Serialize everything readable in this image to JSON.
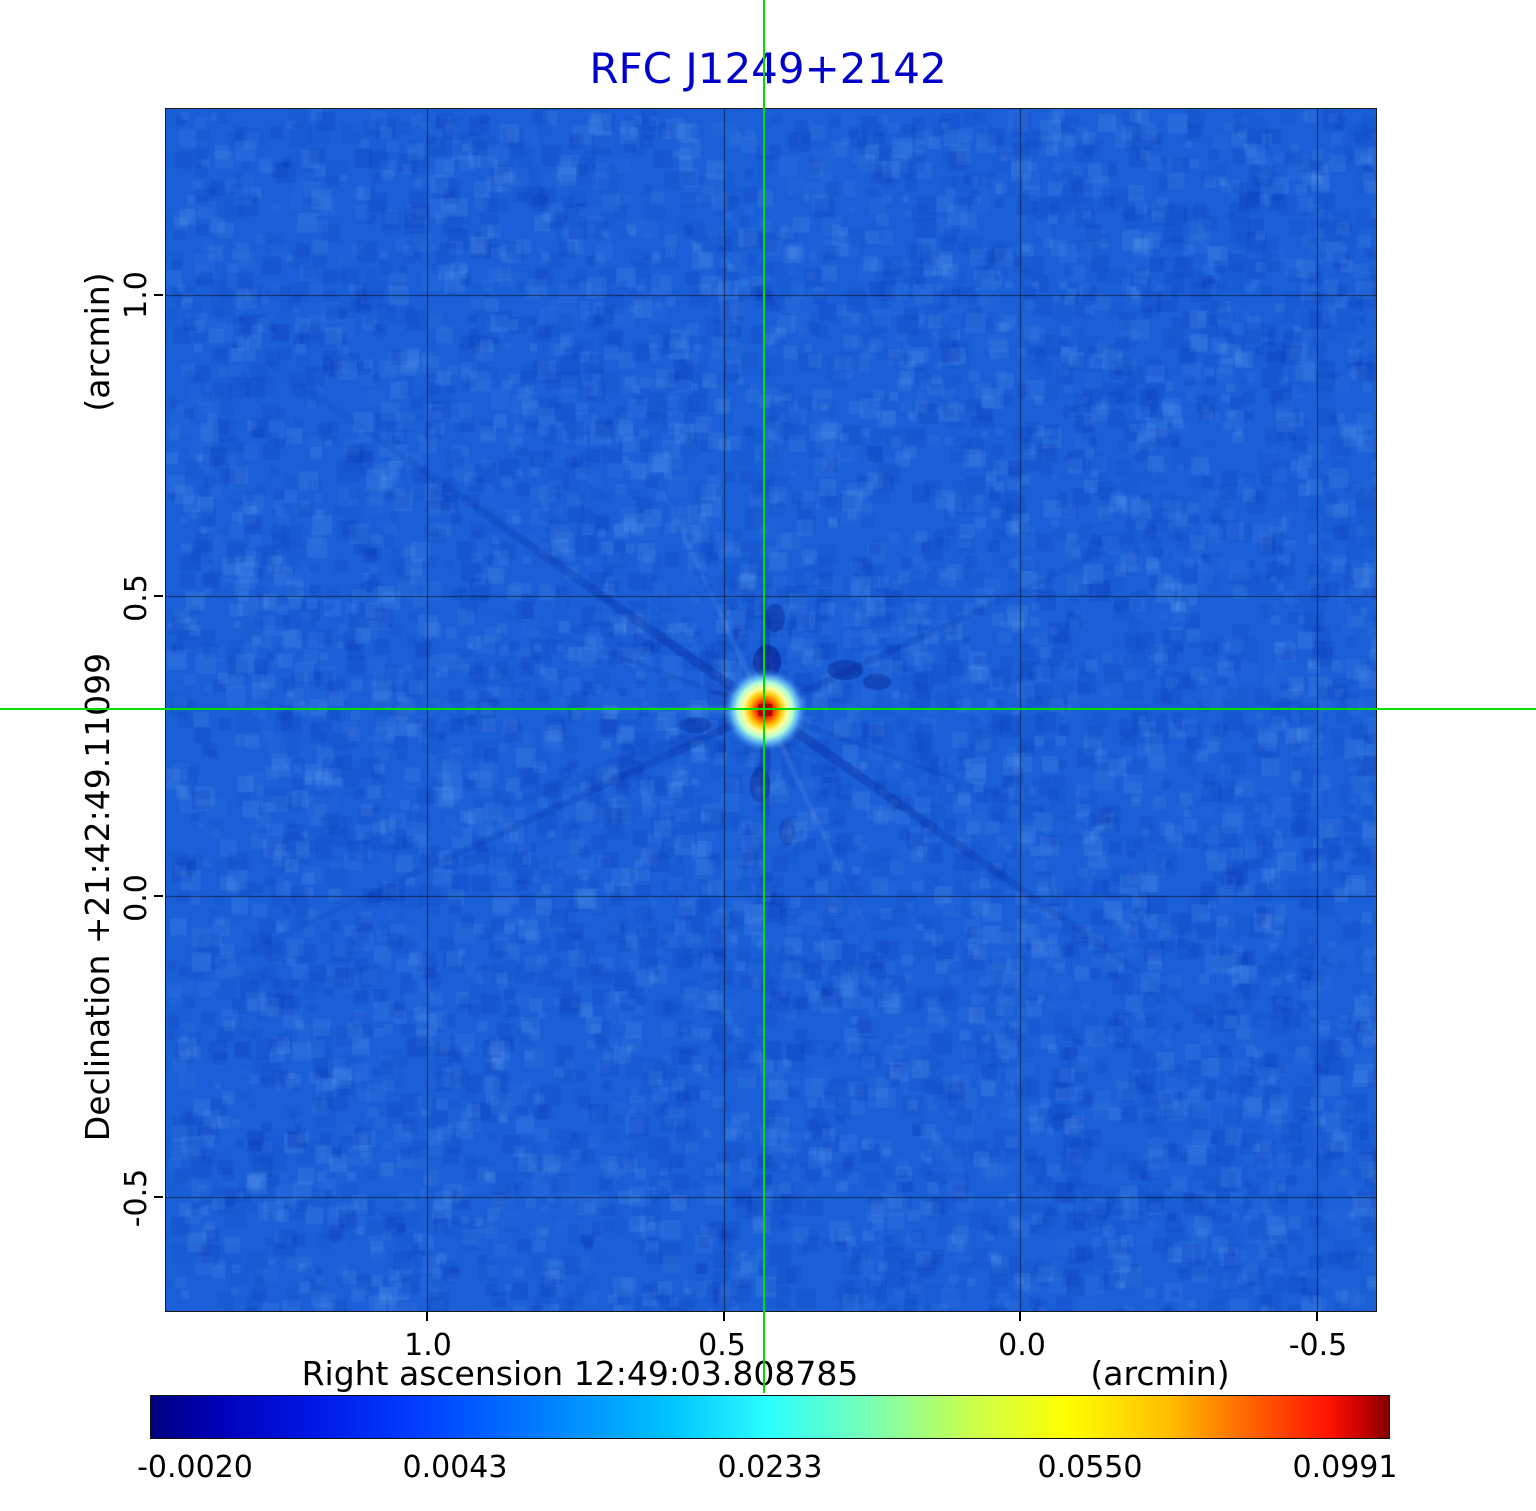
{
  "title": "RFC J1249+2142",
  "colors": {
    "title": "#0000cd",
    "crosshair": "#00dd00",
    "background": "#ffffff"
  },
  "axes": {
    "x_label": "Right ascension  12:49:03.808785",
    "x_unit": "(arcmin)",
    "y_label": "Declination  +21:42:49.11099",
    "y_unit": "(arcmin)",
    "x_ticks": [
      "1.0",
      "0.5",
      "0.0",
      "-0.5"
    ],
    "y_ticks": [
      "1.0",
      "0.5",
      "0.0",
      "-0.5"
    ]
  },
  "colorbar": {
    "labels": [
      "-0.0020",
      "0.0043",
      "0.0233",
      "0.0550",
      "0.0991"
    ]
  },
  "chart_data": {
    "type": "heatmap",
    "title": "RFC J1249+2142",
    "xlabel": "Right ascension 12:49:03.808785 (arcmin)",
    "ylabel": "Declination +21:42:49.11099 (arcmin)",
    "x_range": [
      1.44,
      -0.6
    ],
    "y_range": [
      -0.69,
      1.31
    ],
    "x_tick_values": [
      1.0,
      0.5,
      0.0,
      -0.5
    ],
    "y_tick_values": [
      1.0,
      0.5,
      0.0,
      -0.5
    ],
    "grid": true,
    "colormap": "jet",
    "background_level": 0.002,
    "value_scale_ticks": [
      -0.002,
      0.0043,
      0.0233,
      0.055,
      0.0991
    ],
    "source_peak": {
      "x_arcmin": 0.43,
      "y_arcmin": 0.31,
      "value": 0.0991
    },
    "crosshair": {
      "x_arcmin": 0.43,
      "y_arcmin": 0.31
    }
  }
}
